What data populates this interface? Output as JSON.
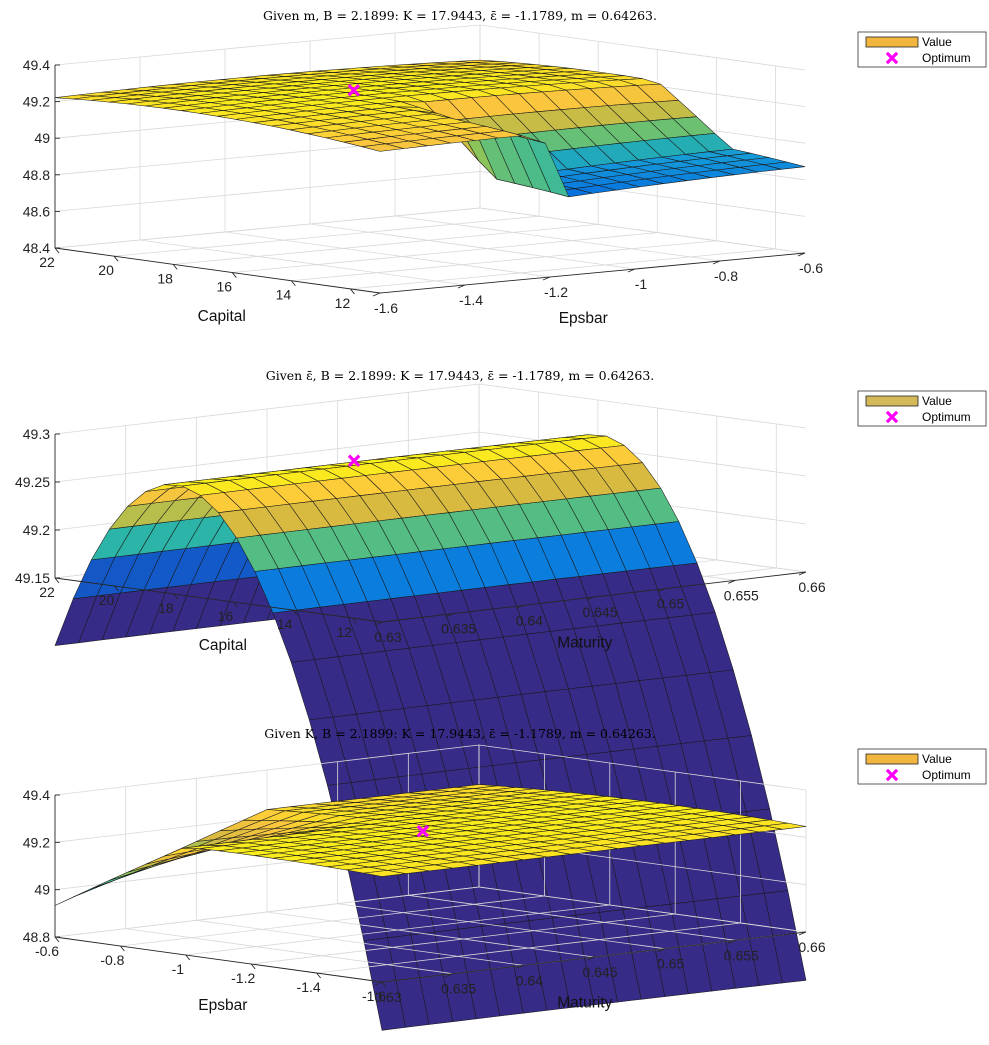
{
  "chart_data": [
    {
      "type": "surface",
      "title": "Given m, B = 2.1899: K = 17.9443, ε̄ = -1.1789, m = 0.64263.",
      "xlabel": "Capital",
      "ylabel": "Epsbar",
      "zlabel": "",
      "x_ticks": [
        "22",
        "20",
        "18",
        "16",
        "14",
        "12"
      ],
      "y_ticks": [
        "-1.6",
        "-1.4",
        "-1.2",
        "-1",
        "-0.8",
        "-0.6"
      ],
      "z_ticks": [
        "48.4",
        "48.6",
        "48.8",
        "49",
        "49.2",
        "49.4"
      ],
      "xlim": [
        11,
        22
      ],
      "ylim": [
        -1.6,
        -0.6
      ],
      "zlim": [
        48.4,
        49.4
      ],
      "grid": true,
      "legend": {
        "position": "top-right",
        "entries": [
          "Value",
          "Optimum"
        ],
        "value_color": "#f2b640"
      },
      "optimum": {
        "x": 17.9443,
        "y": -1.1789,
        "z": 49.25
      },
      "surface_model": "z ≈ 49.26 - 0.0015·(K-17.94)² - 0.08·(ε̄+1.18)²; values drop to ≈48.78 where ε̄ > -1.22 and K < 16",
      "caption": "Given m, B = 2.1899: K = 17.9443, ε̄ = -1.1789, m = 0.64263."
    },
    {
      "type": "surface",
      "title": "Given ε̄, B = 2.1899: K = 17.9443, ε̄ = -1.1789, m = 0.64263.",
      "xlabel": "Capital",
      "ylabel": "Maturity",
      "zlabel": "",
      "x_ticks": [
        "22",
        "20",
        "18",
        "16",
        "14",
        "12"
      ],
      "y_ticks": [
        "0.63",
        "0.635",
        "0.64",
        "0.645",
        "0.65",
        "0.655",
        "0.66"
      ],
      "z_ticks": [
        "49.15",
        "49.2",
        "49.25",
        "49.3"
      ],
      "xlim": [
        11,
        22
      ],
      "ylim": [
        0.63,
        0.66
      ],
      "zlim": [
        49.15,
        49.3
      ],
      "grid": true,
      "legend": {
        "position": "top-right",
        "entries": [
          "Value",
          "Optimum"
        ],
        "value_color": "#d4b95a"
      },
      "optimum": {
        "x": 17.9443,
        "y": 0.64263,
        "z": 49.265
      },
      "surface_model": "z ≈ 49.2646 - 0.0112·(K-17.94)², nearly flat along Maturity; min ≈ 49.14 at K = 11",
      "caption": "Given ε̄, B = 2.1899: K = 17.9443, ε̄ = -1.1789, m = 0.64263."
    },
    {
      "type": "surface",
      "title": "Given K, B = 2.1899: K = 17.9443, ε̄ = -1.1789, m = 0.64263.",
      "xlabel": "Epsbar",
      "ylabel": "Maturity",
      "zlabel": "",
      "x_ticks": [
        "-0.6",
        "-0.8",
        "-1",
        "-1.2",
        "-1.4",
        "-1.6"
      ],
      "y_ticks": [
        "0.63",
        "0.635",
        "0.64",
        "0.645",
        "0.65",
        "0.655",
        "0.66"
      ],
      "z_ticks": [
        "48.8",
        "49",
        "49.2",
        "49.4"
      ],
      "xlim": [
        -1.6,
        -0.6
      ],
      "ylim": [
        0.63,
        0.66
      ],
      "zlim": [
        48.8,
        49.4
      ],
      "grid": true,
      "legend": {
        "position": "top-right",
        "entries": [
          "Value",
          "Optimum"
        ],
        "value_color": "#f2b640"
      },
      "optimum": {
        "x": -1.1789,
        "y": 0.64263,
        "z": 49.26
      },
      "surface_model": "z ≈ 49.26 - 0.08·(ε̄+1.18)², with a lower sheet (≈48.9–49.2) for ε̄ > -1.0 and m < 0.645",
      "caption": "Given K, B = 2.1899: K = 17.9443, ε̄ = -1.1789, m = 0.64263."
    }
  ]
}
